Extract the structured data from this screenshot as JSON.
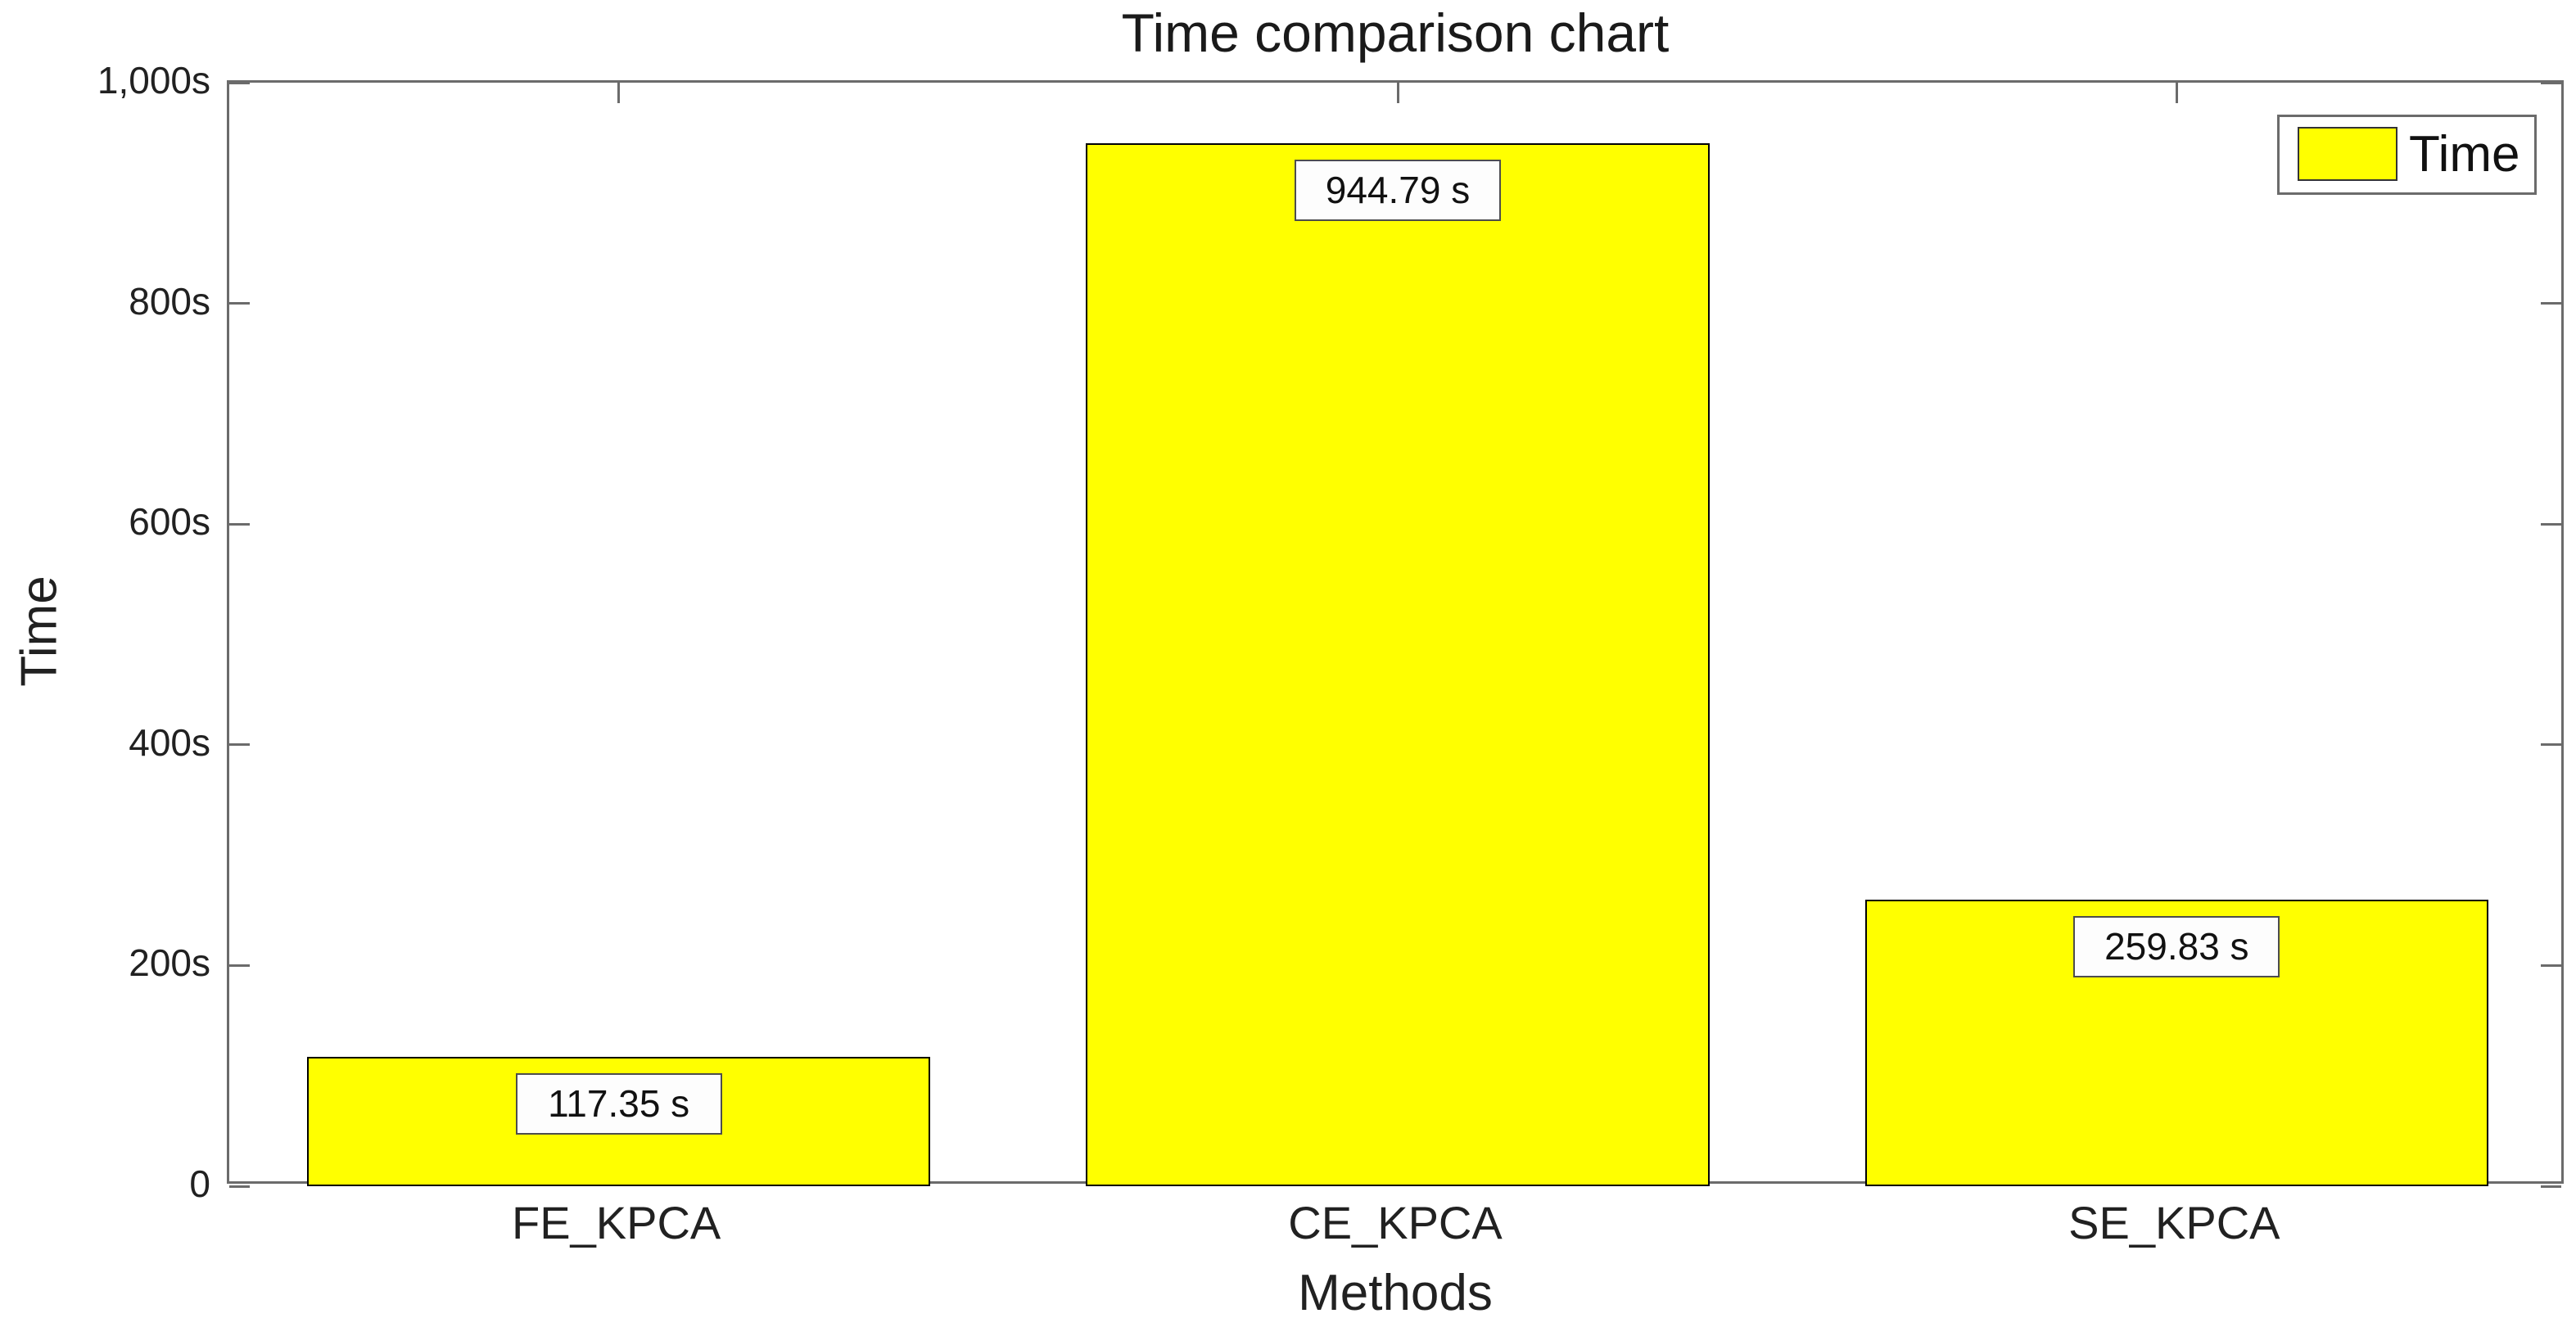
{
  "chart_data": {
    "type": "bar",
    "title": "Time comparison chart",
    "xlabel": "Methods",
    "ylabel": "Time",
    "categories": [
      "FE_KPCA",
      "CE_KPCA",
      "SE_KPCA"
    ],
    "values": [
      117.35,
      944.79,
      259.83
    ],
    "value_labels": [
      "117.35 s",
      "944.79 s",
      "259.83 s"
    ],
    "ylim": [
      0,
      1000
    ],
    "yticks": {
      "values": [
        0,
        200,
        400,
        600,
        800,
        1000
      ],
      "labels": [
        "0",
        "200s",
        "400s",
        "600s",
        "800s",
        "1,000s"
      ]
    },
    "bar_color": "#ffff00",
    "bar_edge_color": "#000000",
    "bar_width_fraction": 0.8,
    "grid": false,
    "legend": {
      "position": "top-right",
      "entries": [
        {
          "label": "Time",
          "color": "#ffff00"
        }
      ]
    },
    "axis_color": "#6b6b6b",
    "background_color": "#ffffff"
  }
}
